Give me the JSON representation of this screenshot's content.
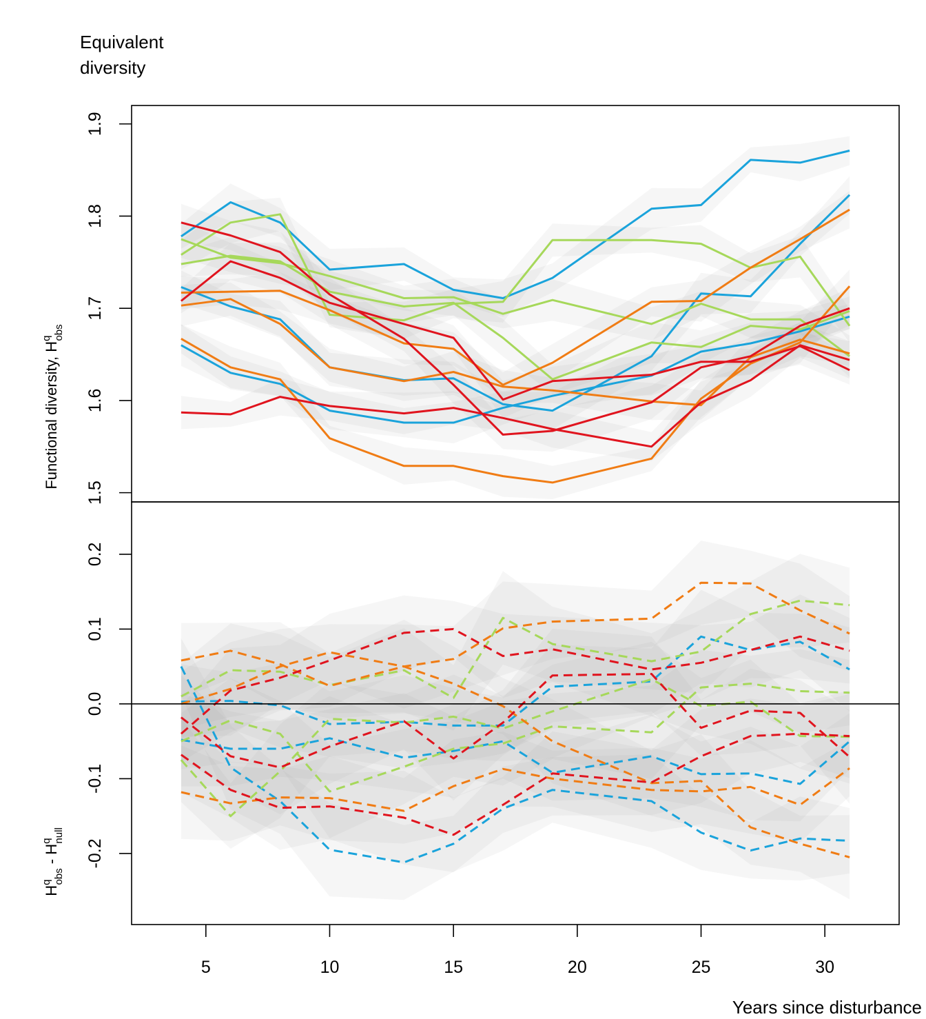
{
  "chart_data": {
    "type": "line",
    "title": "Equivalent diversity",
    "xlabel": "Years since disturbance",
    "x": [
      4,
      6,
      8,
      10,
      13,
      15,
      17,
      19,
      23,
      25,
      27,
      29,
      31
    ],
    "xlim": [
      2,
      33
    ],
    "xticks": [
      "5",
      "10",
      "15",
      "20",
      "25",
      "30"
    ],
    "colors": {
      "blue": "#1aa3db",
      "green": "#a6d85a",
      "orange": "#f07c14",
      "red": "#e0141e"
    },
    "panels": [
      {
        "name": "top",
        "ylabel": {
          "main": "Functional diversity,  H",
          "sup": "q",
          "sub": "obs"
        },
        "ylim": [
          1.49,
          1.92
        ],
        "yticks": [
          "1.5",
          "1.6",
          "1.7",
          "1.8",
          "1.9"
        ],
        "line_style": "solid",
        "series": [
          {
            "color": "blue",
            "values": [
              1.778,
              1.815,
              1.793,
              1.742,
              1.748,
              1.72,
              1.711,
              1.733,
              1.808,
              1.812,
              1.861,
              1.858,
              1.871
            ]
          },
          {
            "color": "blue",
            "values": [
              1.723,
              1.702,
              1.688,
              1.636,
              1.622,
              1.624,
              1.596,
              1.589,
              1.648,
              1.716,
              1.713,
              1.77,
              1.823
            ]
          },
          {
            "color": "blue",
            "values": [
              1.66,
              1.63,
              1.618,
              1.589,
              1.576,
              1.576,
              1.592,
              1.605,
              1.627,
              1.653,
              1.662,
              1.675,
              1.691
            ]
          },
          {
            "color": "green",
            "values": [
              1.758,
              1.793,
              1.802,
              1.693,
              1.687,
              1.705,
              1.707,
              1.774,
              1.774,
              1.77,
              1.744,
              1.756,
              1.681
            ]
          },
          {
            "color": "green",
            "values": [
              1.775,
              1.755,
              1.749,
              1.735,
              1.711,
              1.712,
              1.694,
              1.709,
              1.683,
              1.705,
              1.688,
              1.688,
              1.648
            ]
          },
          {
            "color": "green",
            "values": [
              1.748,
              1.757,
              1.751,
              1.718,
              1.702,
              1.706,
              1.668,
              1.623,
              1.663,
              1.658,
              1.681,
              1.677,
              1.697
            ]
          },
          {
            "color": "orange",
            "values": [
              1.717,
              1.718,
              1.719,
              1.698,
              1.662,
              1.656,
              1.617,
              1.641,
              1.707,
              1.708,
              1.744,
              1.775,
              1.807
            ]
          },
          {
            "color": "orange",
            "values": [
              1.703,
              1.71,
              1.683,
              1.636,
              1.621,
              1.631,
              1.615,
              1.611,
              1.599,
              1.595,
              1.647,
              1.666,
              1.651
            ]
          },
          {
            "color": "orange",
            "values": [
              1.667,
              1.636,
              1.623,
              1.559,
              1.529,
              1.529,
              1.518,
              1.511,
              1.537,
              1.602,
              1.64,
              1.663,
              1.724
            ]
          },
          {
            "color": "red",
            "values": [
              1.793,
              1.779,
              1.761,
              1.715,
              1.667,
              1.617,
              1.563,
              1.567,
              1.598,
              1.636,
              1.648,
              1.681,
              1.7
            ]
          },
          {
            "color": "red",
            "values": [
              1.708,
              1.751,
              1.733,
              1.706,
              1.683,
              1.668,
              1.601,
              1.621,
              1.628,
              1.642,
              1.642,
              1.659,
              1.633
            ]
          },
          {
            "color": "red",
            "values": [
              1.587,
              1.585,
              1.604,
              1.594,
              1.586,
              1.592,
              1.581,
              1.569,
              1.55,
              1.598,
              1.622,
              1.66,
              1.644
            ]
          }
        ]
      },
      {
        "name": "bottom",
        "ylabel": {
          "main": "H",
          "parts": [
            {
              "base": "H",
              "sup": "q",
              "sub": "obs"
            },
            {
              "base": " - H",
              "sup": "q",
              "sub": "null"
            }
          ]
        },
        "ylim": [
          -0.295,
          0.27
        ],
        "yticks": [
          "-0.2",
          "-0.1",
          "0.0",
          "0.1",
          "0.2"
        ],
        "hline": 0,
        "line_style": "dashed",
        "series": [
          {
            "color": "blue",
            "values": [
              0.05,
              -0.085,
              -0.13,
              -0.195,
              -0.212,
              -0.187,
              -0.14,
              -0.115,
              -0.13,
              -0.172,
              -0.196,
              -0.18,
              -0.183
            ]
          },
          {
            "color": "blue",
            "values": [
              0.003,
              0.004,
              -0.002,
              -0.027,
              -0.024,
              -0.029,
              -0.029,
              0.023,
              0.03,
              0.09,
              0.072,
              0.083,
              0.046
            ]
          },
          {
            "color": "blue",
            "values": [
              -0.048,
              -0.06,
              -0.06,
              -0.046,
              -0.072,
              -0.063,
              -0.05,
              -0.092,
              -0.07,
              -0.094,
              -0.093,
              -0.107,
              -0.05
            ]
          },
          {
            "color": "green",
            "values": [
              0.01,
              0.045,
              0.043,
              0.025,
              0.045,
              0.008,
              0.115,
              0.08,
              0.057,
              0.07,
              0.12,
              0.138,
              0.132
            ]
          },
          {
            "color": "green",
            "values": [
              -0.075,
              -0.15,
              -0.09,
              -0.02,
              -0.025,
              -0.017,
              -0.033,
              -0.01,
              0.033,
              -0.003,
              0.003,
              -0.043,
              -0.044
            ]
          },
          {
            "color": "green",
            "values": [
              -0.05,
              -0.022,
              -0.04,
              -0.117,
              -0.084,
              -0.06,
              -0.053,
              -0.03,
              -0.038,
              0.022,
              0.027,
              0.017,
              0.015
            ]
          },
          {
            "color": "orange",
            "values": [
              0.058,
              0.071,
              0.053,
              0.024,
              0.05,
              0.027,
              -0.003,
              -0.05,
              -0.106,
              -0.103,
              -0.165,
              -0.187,
              -0.205
            ]
          },
          {
            "color": "orange",
            "values": [
              -0.118,
              -0.133,
              -0.125,
              -0.126,
              -0.143,
              -0.11,
              -0.087,
              -0.1,
              -0.115,
              -0.117,
              -0.111,
              -0.135,
              -0.086
            ]
          },
          {
            "color": "orange",
            "values": [
              0.0,
              0.02,
              0.05,
              0.069,
              0.05,
              0.06,
              0.101,
              0.11,
              0.114,
              0.162,
              0.161,
              0.125,
              0.094
            ]
          },
          {
            "color": "red",
            "values": [
              -0.018,
              -0.07,
              -0.085,
              -0.057,
              -0.023,
              -0.073,
              -0.025,
              0.038,
              0.04,
              -0.032,
              -0.009,
              -0.012,
              -0.071
            ]
          },
          {
            "color": "red",
            "values": [
              -0.04,
              0.018,
              0.035,
              0.058,
              0.095,
              0.1,
              0.064,
              0.073,
              0.046,
              0.055,
              0.072,
              0.09,
              0.071
            ]
          },
          {
            "color": "red",
            "values": [
              -0.068,
              -0.115,
              -0.139,
              -0.137,
              -0.152,
              -0.175,
              -0.135,
              -0.093,
              -0.105,
              -0.07,
              -0.043,
              -0.04,
              -0.043
            ]
          }
        ]
      }
    ]
  }
}
